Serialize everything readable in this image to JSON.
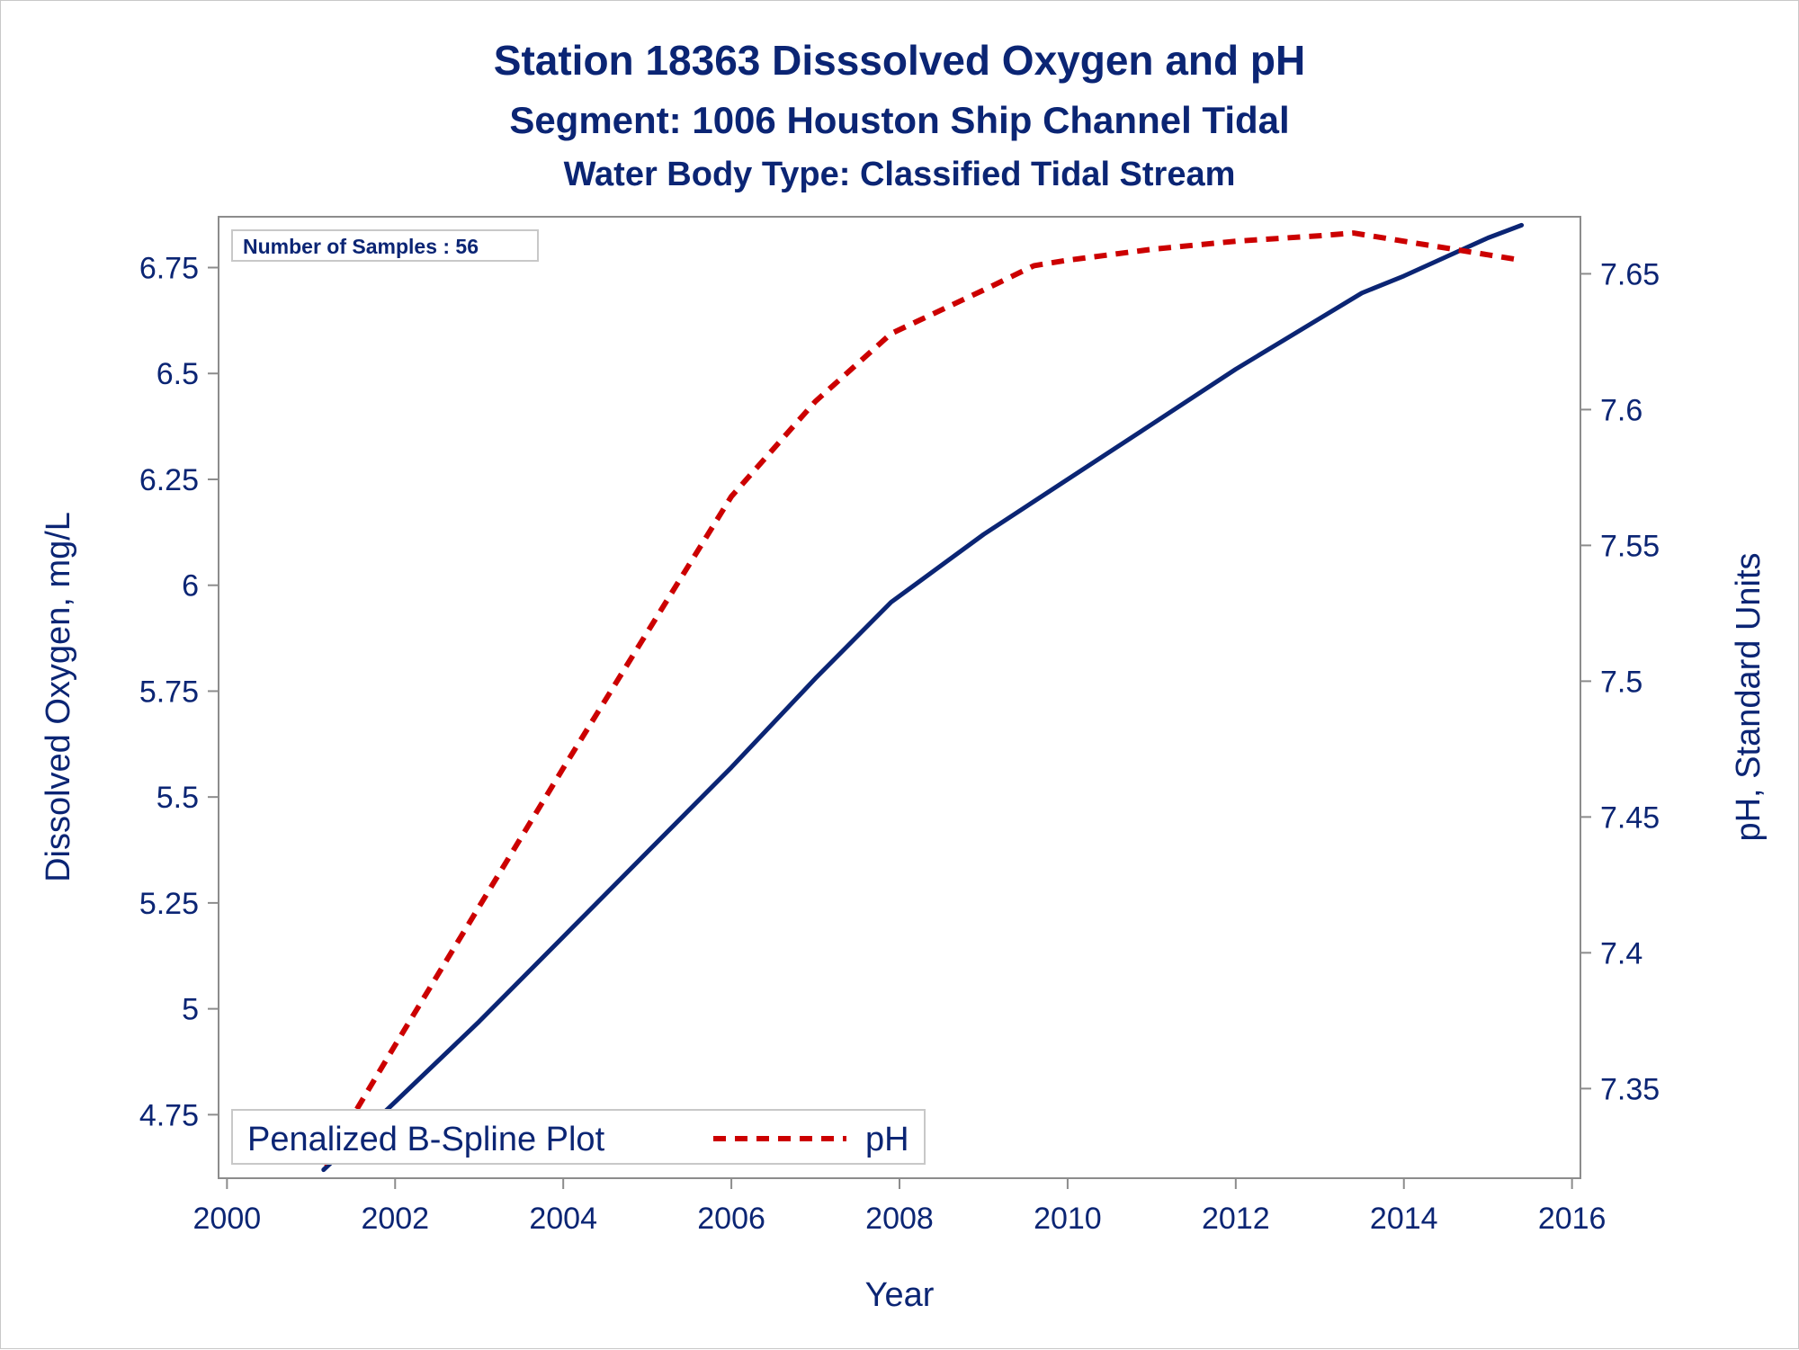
{
  "colors": {
    "text": "#0b2574",
    "do_line": "#0b2574",
    "ph_line": "#cc0000",
    "axis": "#8c8c8c"
  },
  "chart_data": {
    "type": "line",
    "title": "Station 18363    Disssolved Oxygen and pH",
    "subtitle": "Segment: 1006  Houston Ship Channel Tidal",
    "subtitle2": "Water Body Type: Classified Tidal Stream",
    "xlabel": "Year",
    "ylabel": "Dissolved Oxygen, mg/L",
    "y2label": "pH, Standard Units",
    "xlim": [
      1999.9,
      2016.1
    ],
    "ylim": [
      4.6,
      6.87
    ],
    "y2lim": [
      7.317,
      7.671
    ],
    "x_ticks": [
      2000,
      2002,
      2004,
      2006,
      2008,
      2010,
      2012,
      2014,
      2016
    ],
    "y_ticks": [
      4.75,
      5,
      5.25,
      5.5,
      5.75,
      6,
      6.25,
      6.5,
      6.75
    ],
    "y2_ticks": [
      7.35,
      7.4,
      7.45,
      7.5,
      7.55,
      7.6,
      7.65
    ],
    "grid": false,
    "annotation": "Number of Samples : 56",
    "legend": {
      "position": "bottom-left",
      "title": "Penalized B-Spline Plot",
      "entries": [
        "pH"
      ]
    },
    "series": [
      {
        "axis": "left",
        "style": "solid",
        "x": [
          2001.15,
          2002,
          2003,
          2004,
          2005,
          2006,
          2007,
          2007.9,
          2009,
          2010,
          2011,
          2012,
          2013,
          2013.5,
          2014,
          2015,
          2015.4
        ],
        "values": [
          4.62,
          4.78,
          4.97,
          5.17,
          5.37,
          5.57,
          5.78,
          5.96,
          6.12,
          6.25,
          6.38,
          6.51,
          6.63,
          6.69,
          6.73,
          6.82,
          6.85
        ]
      },
      {
        "name": "pH",
        "axis": "right",
        "style": "dashed",
        "x": [
          2001.15,
          2002,
          2003,
          2004,
          2005,
          2006,
          2007,
          2007.9,
          2009,
          2009.6,
          2010,
          2011,
          2012,
          2013,
          2013.4,
          2014,
          2015,
          2015.4
        ],
        "values": [
          7.322,
          7.366,
          7.417,
          7.468,
          7.518,
          7.568,
          7.603,
          7.628,
          7.644,
          7.653,
          7.655,
          7.659,
          7.662,
          7.664,
          7.665,
          7.662,
          7.657,
          7.655
        ]
      }
    ]
  }
}
